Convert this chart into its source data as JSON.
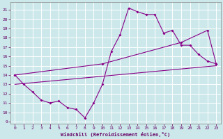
{
  "xlabel": "Windchill (Refroidissement éolien,°C)",
  "bg_color": "#cce8ea",
  "grid_color": "#b0d4d8",
  "line_color": "#880088",
  "xlim": [
    -0.5,
    23.5
  ],
  "ylim": [
    8.8,
    21.8
  ],
  "yticks": [
    9,
    10,
    11,
    12,
    13,
    14,
    15,
    16,
    17,
    18,
    19,
    20,
    21
  ],
  "xticks": [
    0,
    1,
    2,
    3,
    4,
    5,
    6,
    7,
    8,
    9,
    10,
    11,
    12,
    13,
    14,
    15,
    16,
    17,
    18,
    19,
    20,
    21,
    22,
    23
  ],
  "line1_x": [
    0,
    1,
    2,
    3,
    4,
    5,
    6,
    7,
    8,
    9,
    10,
    11,
    12,
    13,
    14,
    15,
    16,
    17,
    18,
    19,
    20,
    21,
    22,
    23
  ],
  "line1_y": [
    14.0,
    13.0,
    12.2,
    11.3,
    11.0,
    11.2,
    10.5,
    10.3,
    9.4,
    11.0,
    13.0,
    16.5,
    18.3,
    21.2,
    20.8,
    20.5,
    20.5,
    18.5,
    18.8,
    17.2,
    17.2,
    16.2,
    15.5,
    15.2
  ],
  "line2_x": [
    0,
    10,
    19,
    22,
    23
  ],
  "line2_y": [
    14.0,
    15.2,
    17.5,
    18.8,
    15.2
  ],
  "line3_x": [
    0,
    23
  ],
  "line3_y": [
    13.0,
    15.0
  ]
}
